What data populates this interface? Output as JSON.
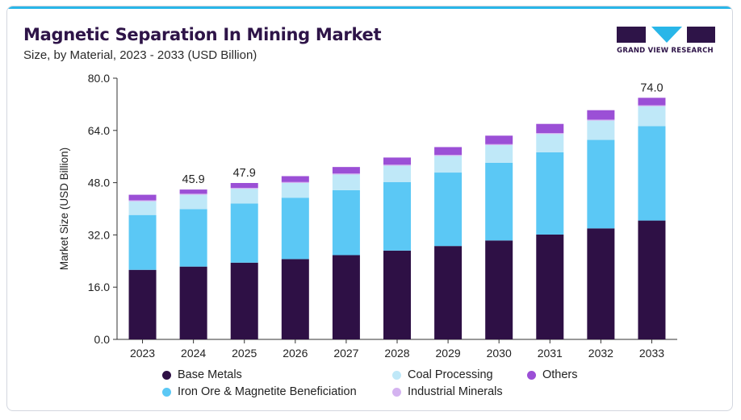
{
  "header": {
    "title": "Magnetic Separation In Mining Market",
    "subtitle": "Size, by Material, 2023 - 2033 (USD Billion)"
  },
  "logo": {
    "text": "GRAND VIEW RESEARCH"
  },
  "colors": {
    "base_metals": "#2e1045",
    "iron_ore": "#5bc8f5",
    "coal_processing": "#bfe8f8",
    "industrial_minerals": "#d4b3f0",
    "others": "#9b4fd6",
    "accent": "#29b6e8",
    "axis": "#333333"
  },
  "chart_data": {
    "type": "bar",
    "stacked": true,
    "categories": [
      "2023",
      "2024",
      "2025",
      "2026",
      "2027",
      "2028",
      "2029",
      "2030",
      "2031",
      "2032",
      "2033"
    ],
    "series": [
      {
        "name": "Base Metals",
        "values": [
          21.3,
          22.3,
          23.5,
          24.6,
          25.8,
          27.2,
          28.6,
          30.3,
          32.1,
          34.0,
          36.4
        ]
      },
      {
        "name": "Iron Ore & Magnetite Beneficiation",
        "values": [
          16.8,
          17.6,
          18.1,
          18.8,
          19.9,
          21.0,
          22.5,
          23.8,
          25.2,
          27.1,
          28.9
        ]
      },
      {
        "name": "Coal Processing",
        "values": [
          4.2,
          4.4,
          4.5,
          4.5,
          4.8,
          5.0,
          5.1,
          5.4,
          5.6,
          5.9,
          6.1
        ]
      },
      {
        "name": "Industrial Minerals",
        "values": [
          0.3,
          0.3,
          0.3,
          0.3,
          0.3,
          0.3,
          0.3,
          0.3,
          0.3,
          0.3,
          0.3
        ]
      },
      {
        "name": "Others",
        "values": [
          1.7,
          1.3,
          1.5,
          1.8,
          2.0,
          2.2,
          2.4,
          2.6,
          2.8,
          2.9,
          2.3
        ]
      }
    ],
    "ylabel": "Market Size (USD Billion)",
    "xlabel": "",
    "ylim": [
      0,
      80
    ],
    "yticks": [
      "0.0",
      "16.0",
      "32.0",
      "48.0",
      "64.0",
      "80.0"
    ],
    "data_labels": [
      {
        "category": "2024",
        "text": "45.9"
      },
      {
        "category": "2025",
        "text": "47.9"
      },
      {
        "category": "2033",
        "text": "74.0"
      }
    ],
    "grid": false,
    "legend_position": "bottom"
  },
  "legend": [
    {
      "label": "Base Metals",
      "color_key": "base_metals"
    },
    {
      "label": "Coal Processing",
      "color_key": "coal_processing"
    },
    {
      "label": "Others",
      "color_key": "others"
    },
    {
      "label": "Iron Ore & Magnetite Beneficiation",
      "color_key": "iron_ore"
    },
    {
      "label": "Industrial Minerals",
      "color_key": "industrial_minerals"
    }
  ]
}
